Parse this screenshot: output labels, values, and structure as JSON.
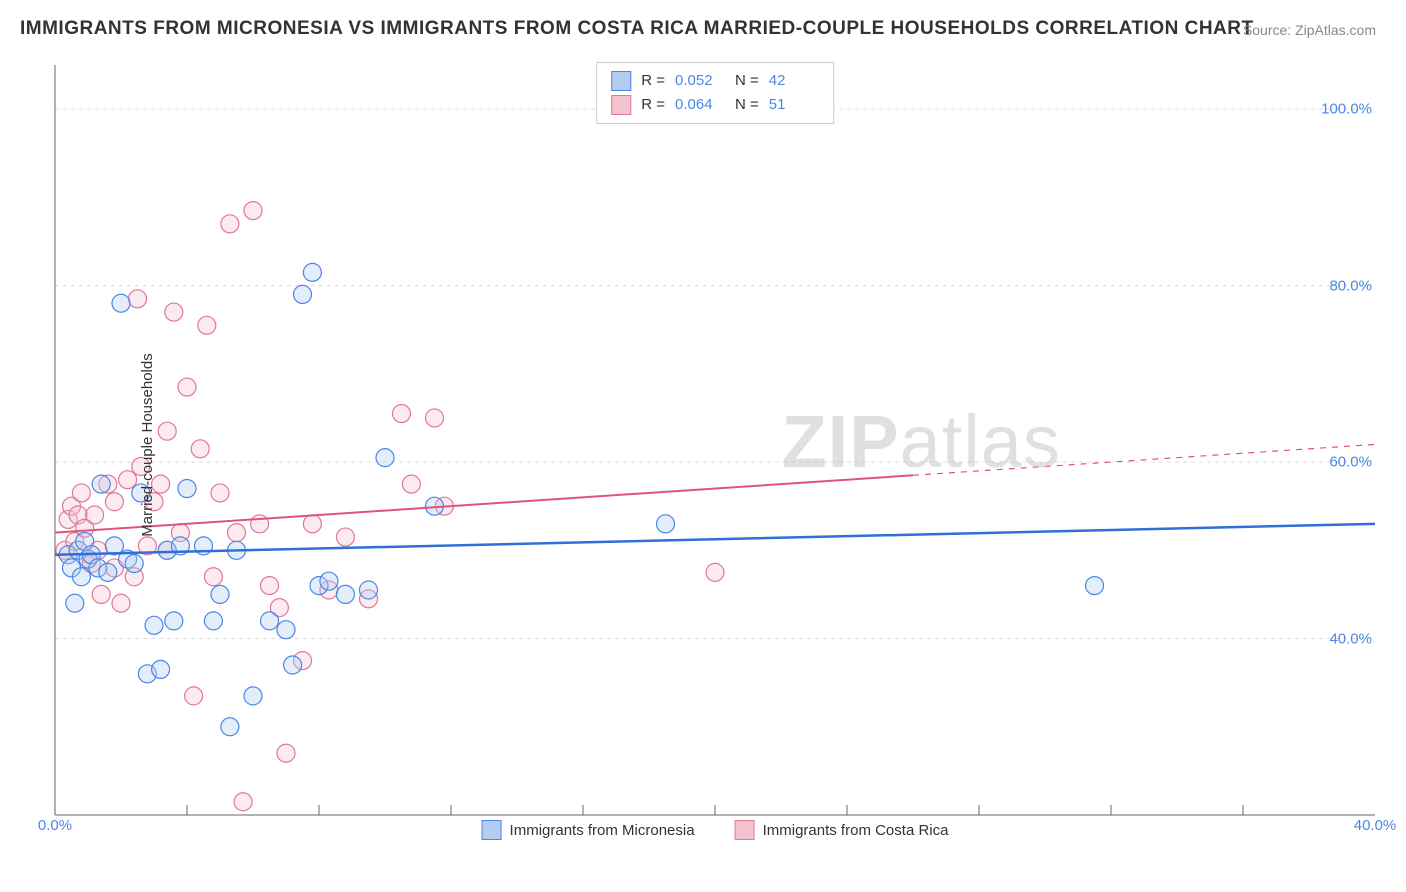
{
  "title": "IMMIGRANTS FROM MICRONESIA VS IMMIGRANTS FROM COSTA RICA MARRIED-COUPLE HOUSEHOLDS CORRELATION CHART",
  "source_label": "Source: ZipAtlas.com",
  "watermark_a": "ZIP",
  "watermark_b": "atlas",
  "ylabel": "Married-couple Households",
  "chart": {
    "type": "scatter",
    "background_color": "#ffffff",
    "grid_color": "#dcdcdc",
    "axis_color": "#666666",
    "tick_label_color": "#4a86e8",
    "xlim": [
      0,
      40
    ],
    "ylim": [
      20,
      105
    ],
    "y_ticks": [
      40,
      60,
      80,
      100
    ],
    "y_tick_labels": [
      "40.0%",
      "60.0%",
      "80.0%",
      "100.0%"
    ],
    "x_ticks": [
      0,
      40
    ],
    "x_tick_labels": [
      "0.0%",
      "40.0%"
    ],
    "x_minor_ticks": [
      4,
      8,
      12,
      16,
      20,
      24,
      28,
      32,
      36
    ],
    "marker_radius": 9,
    "marker_fill_opacity": 0.35,
    "marker_stroke_width": 1.2,
    "series": [
      {
        "name": "Immigrants from Micronesia",
        "color_fill": "#b3cdf0",
        "color_stroke": "#4a86e8",
        "line_color": "#2f6fd8",
        "line_width": 2.5,
        "R": "0.052",
        "N": "42",
        "trend": {
          "x0": 0,
          "y0": 49.5,
          "x1": 40,
          "y1": 53.0,
          "extrapolate_from_x": 40
        },
        "points": [
          [
            0.4,
            49.5
          ],
          [
            0.5,
            48.0
          ],
          [
            0.6,
            44.0
          ],
          [
            0.7,
            50.0
          ],
          [
            0.8,
            47.0
          ],
          [
            0.9,
            51.0
          ],
          [
            1.0,
            49.0
          ],
          [
            1.1,
            49.5
          ],
          [
            1.3,
            48.0
          ],
          [
            1.4,
            57.5
          ],
          [
            1.6,
            47.5
          ],
          [
            1.8,
            50.5
          ],
          [
            2.0,
            78.0
          ],
          [
            2.2,
            49.0
          ],
          [
            2.4,
            48.5
          ],
          [
            2.6,
            56.5
          ],
          [
            2.8,
            36.0
          ],
          [
            3.0,
            41.5
          ],
          [
            3.2,
            36.5
          ],
          [
            3.4,
            50.0
          ],
          [
            3.6,
            42.0
          ],
          [
            3.8,
            50.5
          ],
          [
            4.0,
            57.0
          ],
          [
            4.5,
            50.5
          ],
          [
            4.8,
            42.0
          ],
          [
            5.0,
            45.0
          ],
          [
            5.3,
            30.0
          ],
          [
            5.5,
            50.0
          ],
          [
            6.0,
            33.5
          ],
          [
            6.5,
            42.0
          ],
          [
            7.0,
            41.0
          ],
          [
            7.2,
            37.0
          ],
          [
            7.5,
            79.0
          ],
          [
            7.8,
            81.5
          ],
          [
            8.0,
            46.0
          ],
          [
            8.3,
            46.5
          ],
          [
            8.8,
            45.0
          ],
          [
            9.5,
            45.5
          ],
          [
            10.0,
            60.5
          ],
          [
            11.5,
            55.0
          ],
          [
            18.5,
            53.0
          ],
          [
            31.5,
            46.0
          ]
        ]
      },
      {
        "name": "Immigrants from Costa Rica",
        "color_fill": "#f3c4d0",
        "color_stroke": "#e27798",
        "line_color": "#e05577",
        "line_width": 2,
        "R": "0.064",
        "N": "51",
        "trend": {
          "x0": 0,
          "y0": 52.0,
          "x1": 26,
          "y1": 58.5,
          "extrapolate_from_x": 26
        },
        "points": [
          [
            0.3,
            50.0
          ],
          [
            0.4,
            53.5
          ],
          [
            0.5,
            55.0
          ],
          [
            0.6,
            51.0
          ],
          [
            0.7,
            54.0
          ],
          [
            0.8,
            56.5
          ],
          [
            0.9,
            52.5
          ],
          [
            1.0,
            49.0
          ],
          [
            1.1,
            48.5
          ],
          [
            1.2,
            54.0
          ],
          [
            1.3,
            50.0
          ],
          [
            1.4,
            45.0
          ],
          [
            1.6,
            57.5
          ],
          [
            1.8,
            48.0
          ],
          [
            1.8,
            55.5
          ],
          [
            2.0,
            44.0
          ],
          [
            2.2,
            58.0
          ],
          [
            2.4,
            47.0
          ],
          [
            2.5,
            78.5
          ],
          [
            2.6,
            59.5
          ],
          [
            2.8,
            50.5
          ],
          [
            3.0,
            55.5
          ],
          [
            3.2,
            57.5
          ],
          [
            3.4,
            50.0
          ],
          [
            3.4,
            63.5
          ],
          [
            3.6,
            77.0
          ],
          [
            3.8,
            52.0
          ],
          [
            4.0,
            68.5
          ],
          [
            4.2,
            33.5
          ],
          [
            4.4,
            61.5
          ],
          [
            4.6,
            75.5
          ],
          [
            4.8,
            47.0
          ],
          [
            5.0,
            56.5
          ],
          [
            5.3,
            87.0
          ],
          [
            5.5,
            52.0
          ],
          [
            5.7,
            21.5
          ],
          [
            6.0,
            88.5
          ],
          [
            6.2,
            53.0
          ],
          [
            6.5,
            46.0
          ],
          [
            6.8,
            43.5
          ],
          [
            7.0,
            27.0
          ],
          [
            7.5,
            37.5
          ],
          [
            7.8,
            53.0
          ],
          [
            8.3,
            45.5
          ],
          [
            8.8,
            51.5
          ],
          [
            9.5,
            44.5
          ],
          [
            10.5,
            65.5
          ],
          [
            10.8,
            57.5
          ],
          [
            11.5,
            65.0
          ],
          [
            11.8,
            55.0
          ],
          [
            20.0,
            47.5
          ]
        ]
      }
    ],
    "legend_top": {
      "r_label": "R =",
      "n_label": "N ="
    },
    "legend_bottom": [
      {
        "label": "Immigrants from Micronesia",
        "series_index": 0
      },
      {
        "label": "Immigrants from Costa Rica",
        "series_index": 1
      }
    ]
  }
}
